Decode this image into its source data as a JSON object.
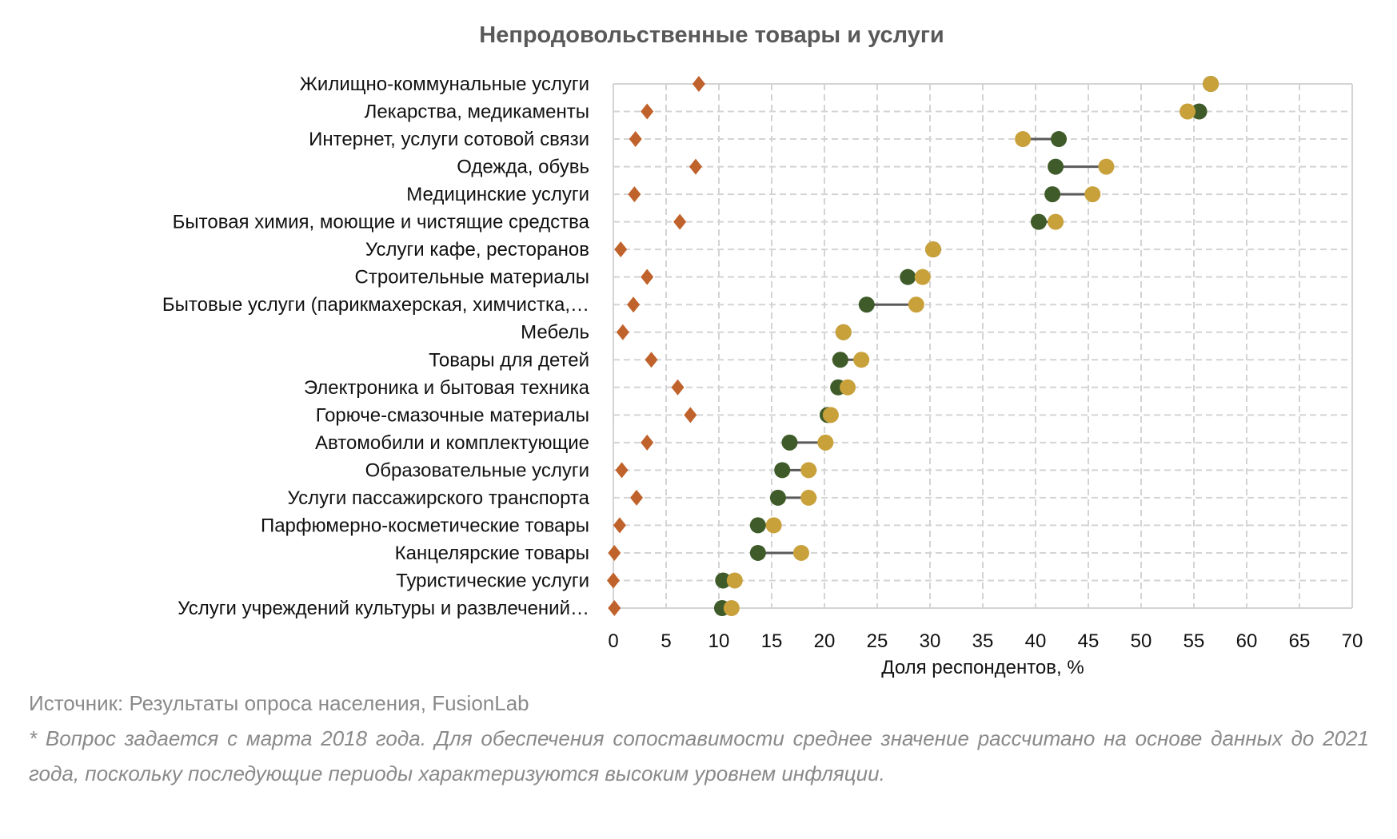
{
  "chart_data": {
    "type": "dot-plot",
    "title": "Непродовольственные товары и услуги",
    "xlabel": "Доля респондентов, %",
    "ylabel": "",
    "xlim": [
      0,
      70
    ],
    "xticks": [
      0,
      5,
      10,
      15,
      20,
      25,
      30,
      35,
      40,
      45,
      50,
      55,
      60,
      65,
      70
    ],
    "grid": true,
    "legend": "none",
    "colors": {
      "diamond": "#C0622B",
      "green": "#3F5B29",
      "gold": "#C9A13B",
      "connector": "#5A5A5A",
      "grid": "#D4D4D4"
    },
    "categories": [
      "Жилищно-коммунальные услуги",
      "Лекарства, медикаменты",
      "Интернет, услуги сотовой связи",
      "Одежда, обувь",
      "Медицинские услуги",
      "Бытовая химия, моющие и чистящие средства",
      "Услуги кафе, ресторанов",
      "Строительные материалы",
      "Бытовые услуги (парикмахерская, химчистка,…",
      "Мебель",
      "Товары для детей",
      "Электроника и бытовая техника",
      "Горюче-смазочные материалы",
      "Автомобили и комплектующие",
      "Образовательные услуги",
      "Услуги пассажирского транспорта",
      "Парфюмерно-косметические товары",
      "Канцелярские товары",
      "Туристические услуги",
      "Услуги учреждений культуры и развлечений…"
    ],
    "series": [
      {
        "marker": "diamond",
        "values": [
          8.1,
          3.2,
          2.1,
          7.8,
          2.0,
          6.3,
          0.7,
          3.2,
          1.9,
          0.9,
          3.6,
          6.1,
          7.3,
          3.2,
          0.8,
          2.2,
          0.6,
          0.1,
          0.0,
          0.1
        ]
      },
      {
        "marker": "green-circle",
        "values": [
          56.6,
          55.5,
          42.2,
          41.9,
          41.6,
          40.3,
          30.3,
          27.9,
          24.0,
          21.8,
          21.5,
          21.3,
          20.3,
          16.7,
          16.0,
          15.6,
          13.7,
          13.7,
          10.4,
          10.3
        ]
      },
      {
        "marker": "gold-circle",
        "values": [
          56.6,
          54.4,
          38.8,
          46.7,
          45.4,
          41.9,
          30.3,
          29.3,
          28.7,
          21.8,
          23.5,
          22.2,
          20.6,
          20.1,
          18.5,
          18.5,
          15.2,
          17.8,
          11.5,
          11.2
        ]
      }
    ]
  },
  "notes": {
    "source": "Источник: Результаты опроса населения, FusionLab",
    "footnote": "* Вопрос задается с марта 2018 года. Для обеспечения сопоставимости среднее значение рассчитано на основе данных до 2021 года, поскольку последующие периоды характеризуются высоким уровнем инфляции."
  }
}
